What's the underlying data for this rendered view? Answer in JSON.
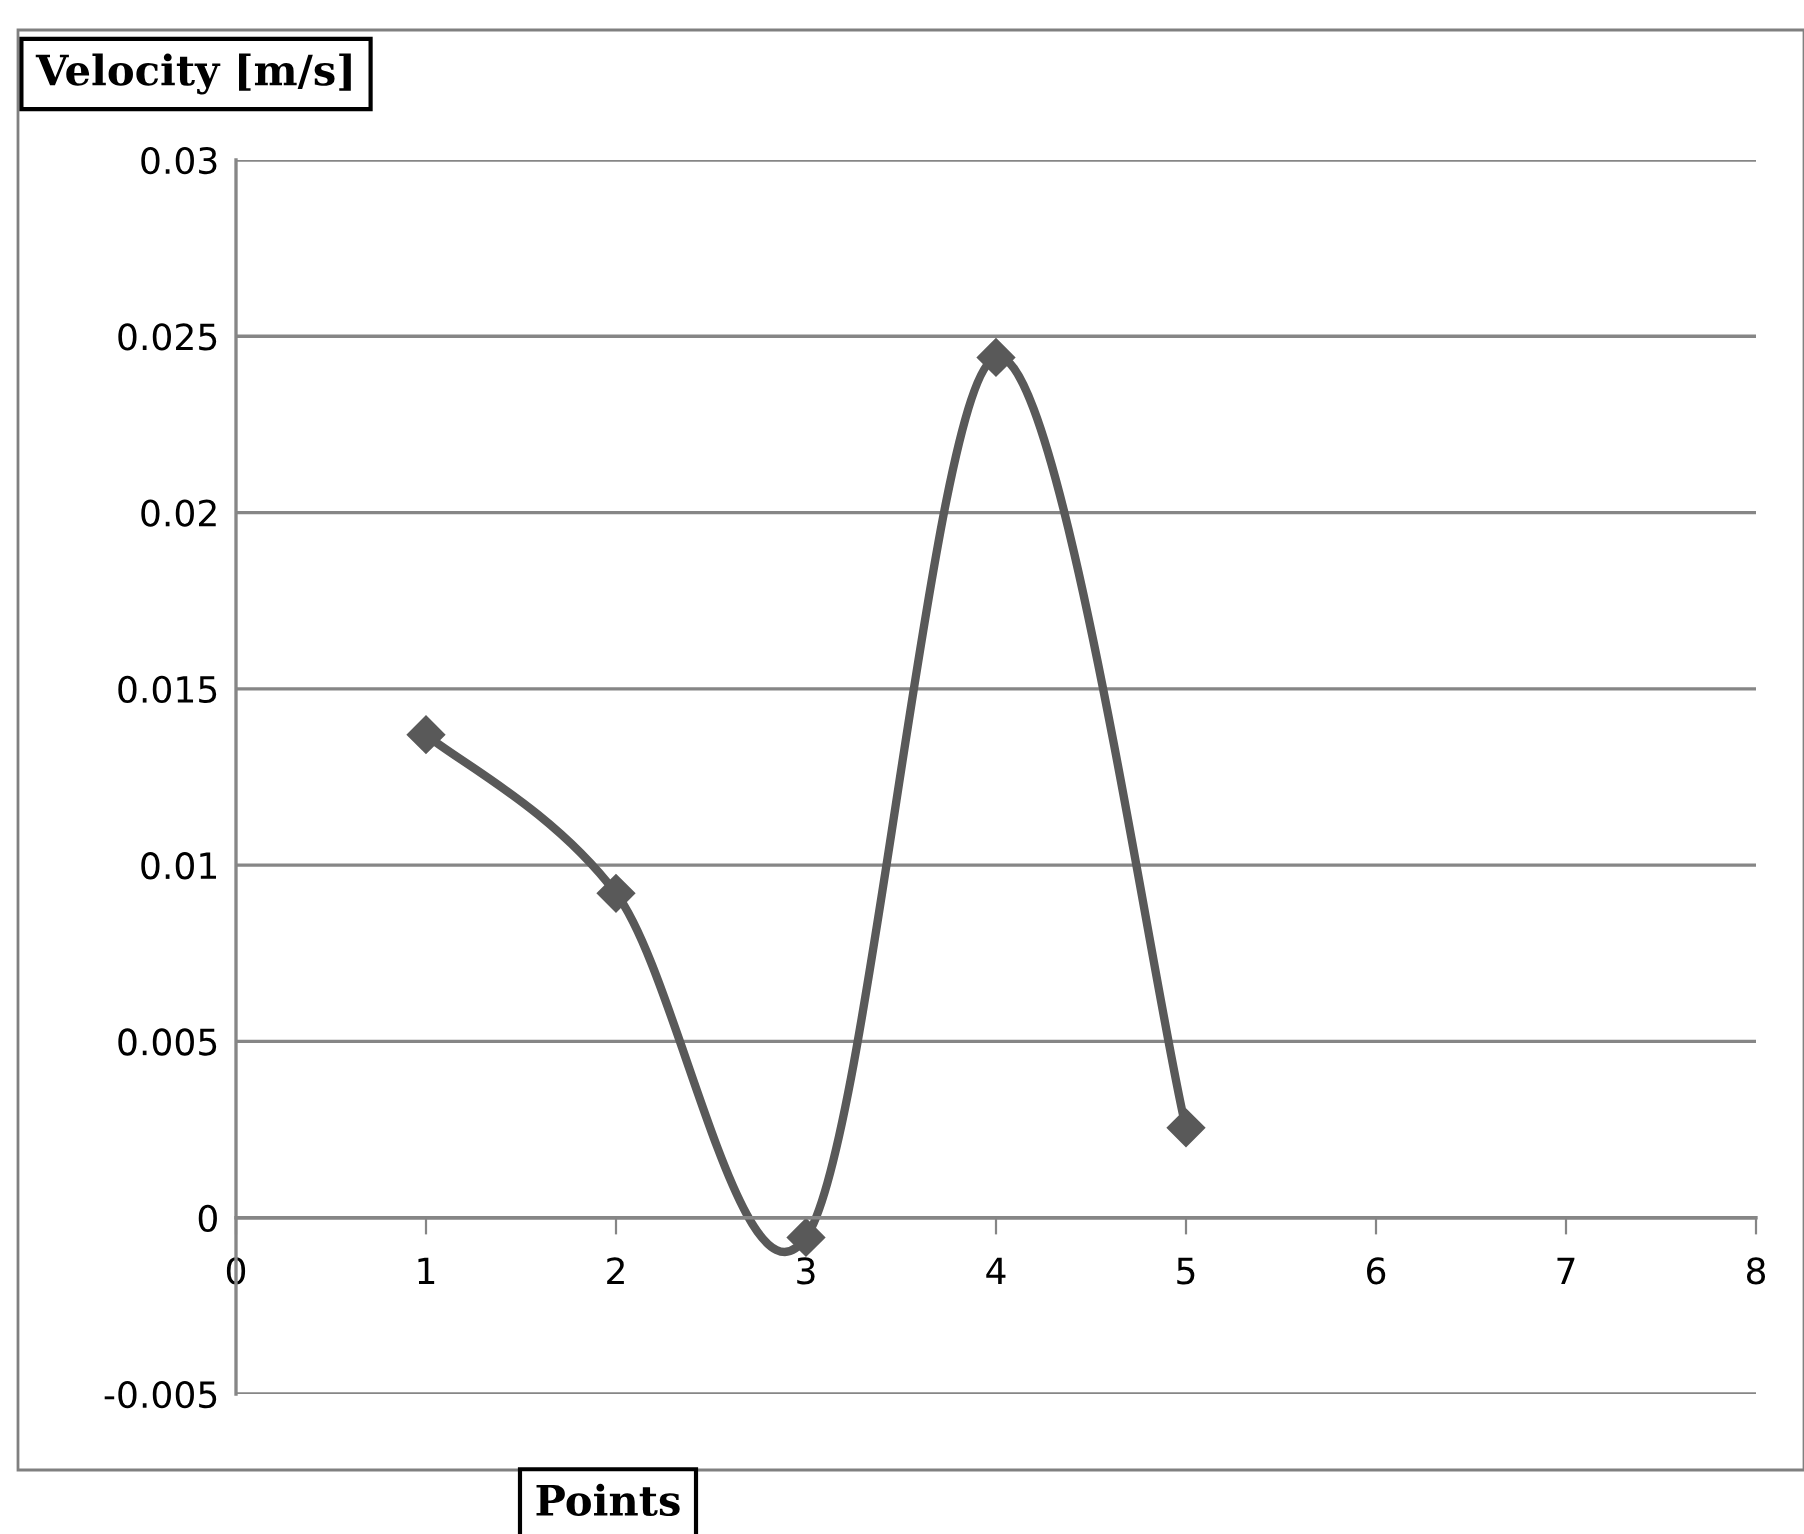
{
  "chart_data": {
    "type": "line",
    "xlabel": "Points",
    "ylabel": "Velocity [m/s]",
    "x": [
      1,
      2,
      3,
      4,
      5
    ],
    "series": [
      {
        "color": "#595959",
        "values": [
          0.0137,
          0.0092,
          -0.00056,
          0.0244,
          0.00255
        ]
      }
    ],
    "xlim": [
      0,
      8
    ],
    "xticks": [
      0,
      1,
      2,
      3,
      4,
      5,
      6,
      7,
      8
    ],
    "ylim": [
      -0.005,
      0.03
    ],
    "yticks": [
      -0.005,
      0,
      0.005,
      0.01,
      0.015,
      0.02,
      0.025,
      0.03
    ],
    "grid": "y",
    "marker": "diamond",
    "line_style": "solid",
    "legend": false
  }
}
